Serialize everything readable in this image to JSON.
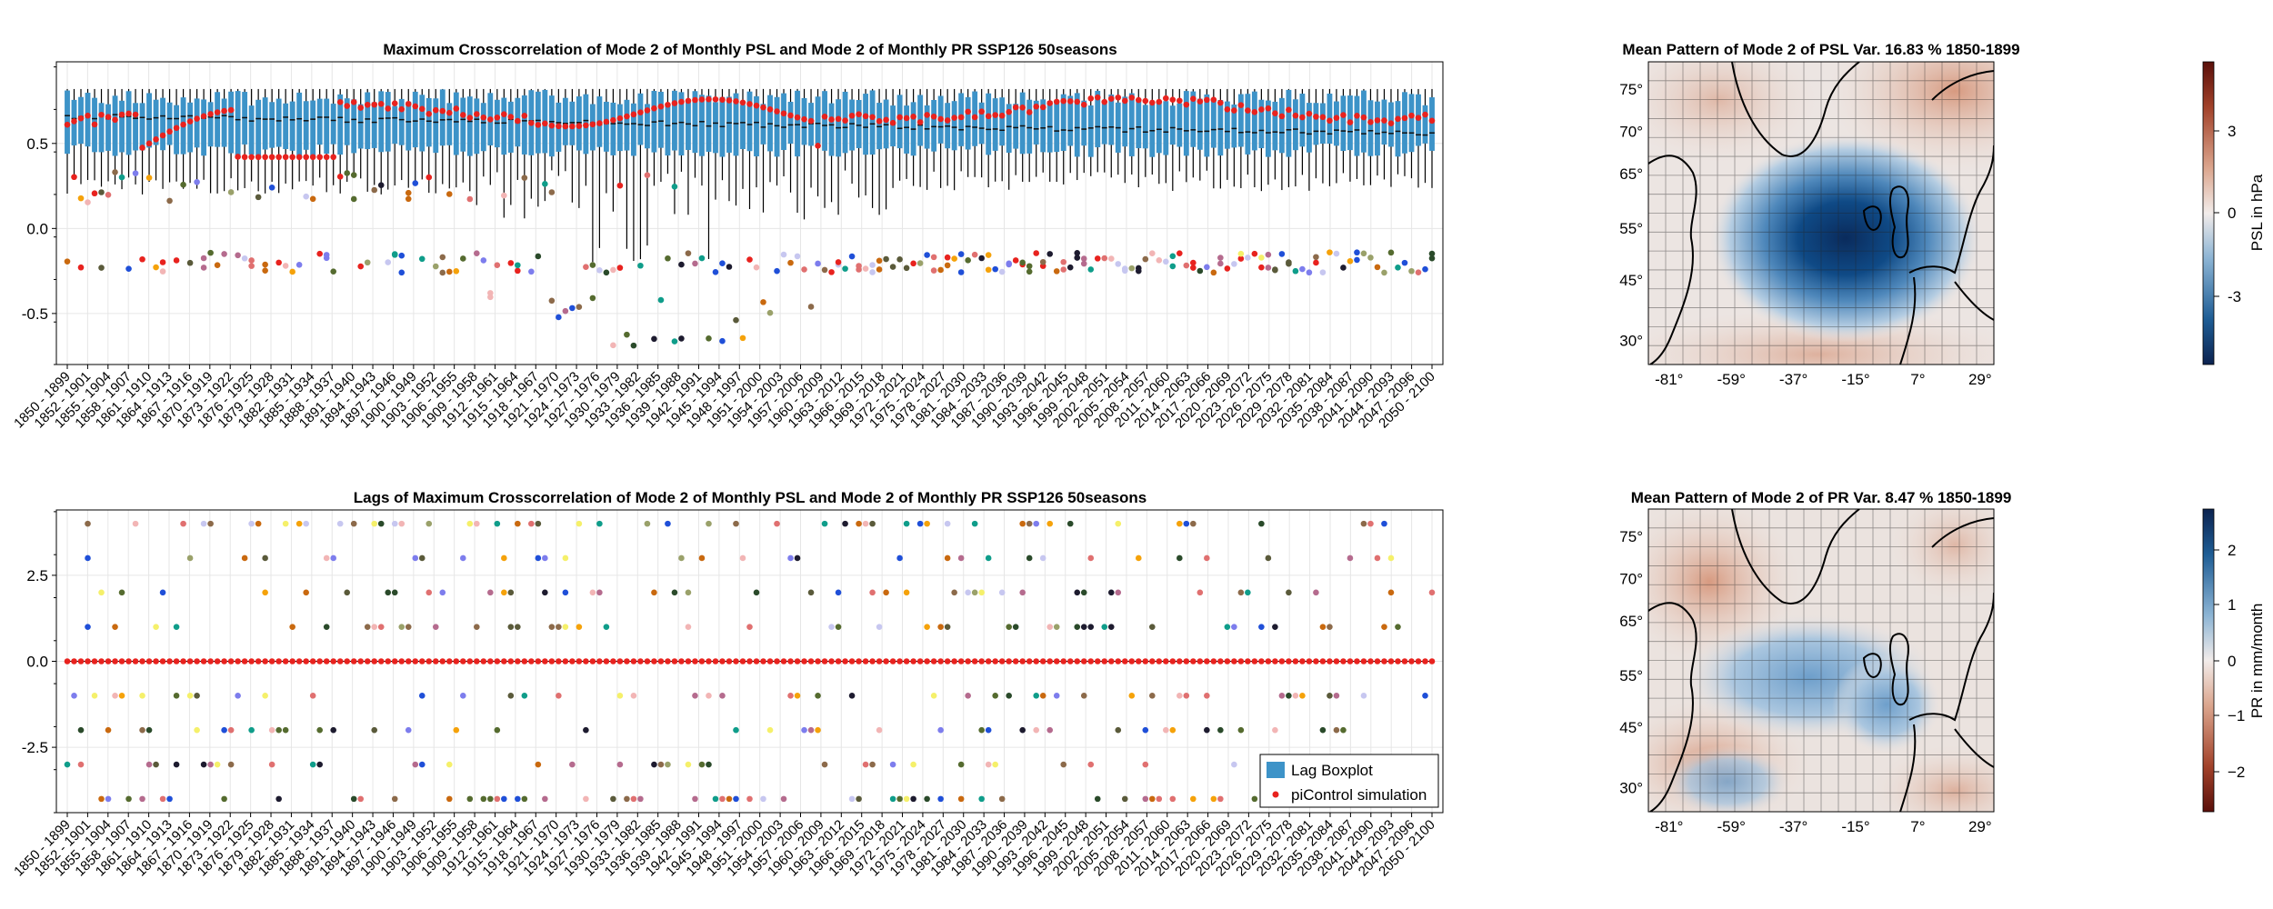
{
  "colors": {
    "box": "#3d93c8",
    "pi": "#e8221e",
    "grid": "#e6e6e6"
  },
  "legend": {
    "lag_boxplot": "Lag Boxplot",
    "pi_control": "piControl simulation"
  },
  "chart_data": [
    {
      "id": "crosscorrelation",
      "type": "boxplot",
      "title": "Maximum  Crosscorrelation of Monthly PSL and Mode 2 of Monthly PR SSP126 50seasons",
      "title_full": "Maximum  Crosscorrelation of Mode 2 of Monthly PSL and Mode 2 of Monthly PR SSP126 50seasons",
      "ylim": [
        -0.8,
        0.98
      ],
      "yticks": [
        -0.5,
        0.0,
        0.5
      ],
      "yticklabels": [
        "-0.5",
        "0.0",
        "0.5"
      ],
      "n_windows": 201,
      "window_start": 1850,
      "window_length_years": 50,
      "box_q1_range": [
        0.42,
        0.5
      ],
      "box_q3_range": [
        0.72,
        0.82
      ],
      "median_range": [
        0.55,
        0.68
      ],
      "whisker_low_range": [
        -0.25,
        0.3
      ],
      "whisker_high": 0.82,
      "pi_control_range": [
        0.42,
        0.8
      ],
      "grid": true
    },
    {
      "id": "lags",
      "type": "boxplot",
      "title": "Lags of Maximum  Crosscorrelation of Mode 2 of Monthly PSL and Mode 2 of Monthly PR SSP126 50seasons",
      "ylim": [
        -4.4,
        4.4
      ],
      "yticks": [
        -2.5,
        0.0,
        2.5
      ],
      "yticklabels": [
        "-2.5",
        "0.0",
        "2.5"
      ],
      "lag_levels": [
        -4,
        -3,
        -2,
        -1,
        0,
        1,
        2,
        3,
        4
      ],
      "pi_control_lag": 0,
      "grid": true
    }
  ],
  "xtick_labels": [
    "1850 - 1899",
    "1852 - 1901",
    "1855 - 1904",
    "1858 - 1907",
    "1861 - 1910",
    "1864 - 1913",
    "1867 - 1916",
    "1870 - 1919",
    "1873 - 1922",
    "1876 - 1925",
    "1879 - 1928",
    "1882 - 1931",
    "1885 - 1934",
    "1888 - 1937",
    "1891 - 1940",
    "1894 - 1943",
    "1897 - 1946",
    "1900 - 1949",
    "1903 - 1952",
    "1906 - 1955",
    "1909 - 1958",
    "1912 - 1961",
    "1915 - 1964",
    "1918 - 1967",
    "1921 - 1970",
    "1924 - 1973",
    "1927 - 1976",
    "1930 - 1979",
    "1933 - 1982",
    "1936 - 1985",
    "1939 - 1988",
    "1942 - 1991",
    "1945 - 1994",
    "1948 - 1997",
    "1951 - 2000",
    "1954 - 2003",
    "1957 - 2006",
    "1960 - 2009",
    "1963 - 2012",
    "1966 - 2015",
    "1969 - 2018",
    "1972 - 2021",
    "1975 - 2024",
    "1978 - 2027",
    "1981 - 2030",
    "1984 - 2033",
    "1987 - 2036",
    "1990 - 2039",
    "1993 - 2042",
    "1996 - 2045",
    "1999 - 2048",
    "2002 - 2051",
    "2005 - 2054",
    "2008 - 2057",
    "2011 - 2060",
    "2014 - 2063",
    "2017 - 2066",
    "2020 - 2069",
    "2023 - 2072",
    "2026 - 2075",
    "2029 - 2078",
    "2032 - 2081",
    "2035 - 2084",
    "2038 - 2087",
    "2041 - 2090",
    "2044 - 2093",
    "2047 - 2096",
    "2050 - 2100"
  ],
  "maps": [
    {
      "id": "psl",
      "title": "Mean Pattern of Mode 2 of PSL Var. 16.83 % 1850-1899",
      "lat_labels": [
        "75°",
        "70°",
        "65°",
        "55°",
        "45°",
        "30°"
      ],
      "lon_labels": [
        "-81°",
        "-59°",
        "-37°",
        "-15°",
        "7°",
        "29°"
      ],
      "colorbar_label": "PSL in hPa",
      "colorbar_ticks": [
        "3",
        "0",
        "-3"
      ],
      "colormap": "balance_red_top"
    },
    {
      "id": "pr",
      "title": "Mean Pattern of Mode 2 of PR Var. 8.47 % 1850-1899",
      "lat_labels": [
        "75°",
        "70°",
        "65°",
        "55°",
        "45°",
        "30°"
      ],
      "lon_labels": [
        "-81°",
        "-59°",
        "-37°",
        "-15°",
        "7°",
        "29°"
      ],
      "colorbar_label": "PR in mm/month",
      "colorbar_ticks": [
        "2",
        "1",
        "0",
        "−1",
        "−2"
      ],
      "colormap": "balance_blue_top"
    }
  ]
}
